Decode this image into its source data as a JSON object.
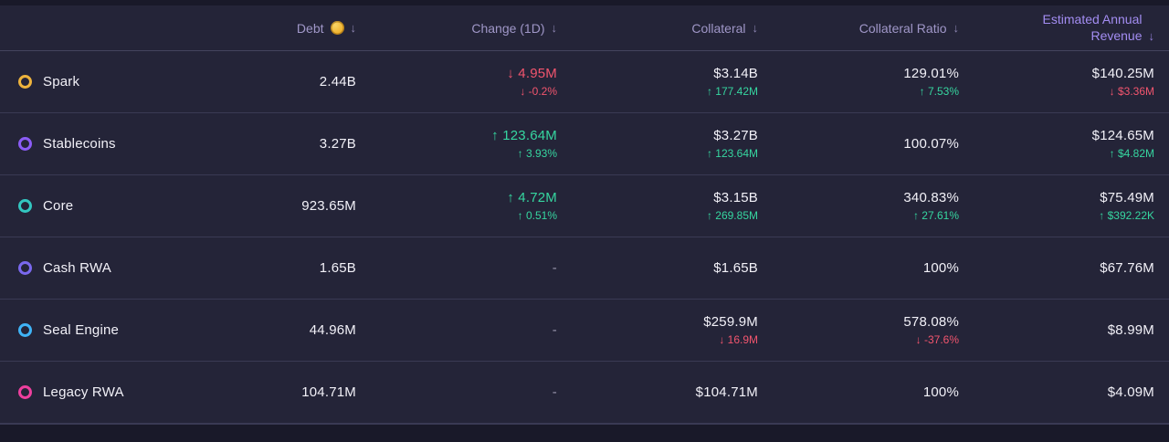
{
  "theme": {
    "bg": "#242438",
    "edge": "#191929",
    "divider": "#3a3a54",
    "header_divider": "#44445e",
    "text_primary": "#f2f1f8",
    "text_header": "#a097c8",
    "accent_header": "#a38df2",
    "positive": "#36d6a0",
    "negative": "#f2556e",
    "muted": "#9896ab",
    "coin": "#f0b431"
  },
  "table": {
    "headers": {
      "name": {
        "label": ""
      },
      "debt": {
        "label": "Debt",
        "icon": "coin-icon",
        "sort": "↓"
      },
      "change": {
        "label": "Change (1D)",
        "sort": "↓"
      },
      "collateral": {
        "label": "Collateral",
        "sort": "↓"
      },
      "ratio": {
        "label": "Collateral Ratio",
        "sort": "↓"
      },
      "revenue": {
        "label": "Estimated Annual Revenue",
        "sort": "↓"
      }
    },
    "rows": [
      {
        "name": "Spark",
        "color": "#eeb33d",
        "debt": {
          "value": "2.44B"
        },
        "change": {
          "value": "4.95M",
          "dir": "down",
          "sub": "-0.2%",
          "sub_dir": "down"
        },
        "collateral": {
          "value": "$3.14B",
          "sub": "177.42M",
          "sub_dir": "up"
        },
        "ratio": {
          "value": "129.01%",
          "sub": "7.53%",
          "sub_dir": "up"
        },
        "revenue": {
          "value": "$140.25M",
          "sub": "$3.36M",
          "sub_dir": "down"
        }
      },
      {
        "name": "Stablecoins",
        "color": "#8b5cf6",
        "debt": {
          "value": "3.27B"
        },
        "change": {
          "value": "123.64M",
          "dir": "up",
          "sub": "3.93%",
          "sub_dir": "up"
        },
        "collateral": {
          "value": "$3.27B",
          "sub": "123.64M",
          "sub_dir": "up"
        },
        "ratio": {
          "value": "100.07%"
        },
        "revenue": {
          "value": "$124.65M",
          "sub": "$4.82M",
          "sub_dir": "up"
        }
      },
      {
        "name": "Core",
        "color": "#33c6c0",
        "debt": {
          "value": "923.65M"
        },
        "change": {
          "value": "4.72M",
          "dir": "up",
          "sub": "0.51%",
          "sub_dir": "up"
        },
        "collateral": {
          "value": "$3.15B",
          "sub": "269.85M",
          "sub_dir": "up"
        },
        "ratio": {
          "value": "340.83%",
          "sub": "27.61%",
          "sub_dir": "up"
        },
        "revenue": {
          "value": "$75.49M",
          "sub": "$392.22K",
          "sub_dir": "up"
        }
      },
      {
        "name": "Cash RWA",
        "color": "#7a68ee",
        "debt": {
          "value": "1.65B"
        },
        "change": {
          "value": "-"
        },
        "collateral": {
          "value": "$1.65B"
        },
        "ratio": {
          "value": "100%"
        },
        "revenue": {
          "value": "$67.76M"
        }
      },
      {
        "name": "Seal Engine",
        "color": "#3fb3f6",
        "debt": {
          "value": "44.96M"
        },
        "change": {
          "value": "-"
        },
        "collateral": {
          "value": "$259.9M",
          "sub": "16.9M",
          "sub_dir": "down"
        },
        "ratio": {
          "value": "578.08%",
          "sub": "-37.6%",
          "sub_dir": "down"
        },
        "revenue": {
          "value": "$8.99M"
        }
      },
      {
        "name": "Legacy RWA",
        "color": "#ee3f9e",
        "debt": {
          "value": "104.71M"
        },
        "change": {
          "value": "-"
        },
        "collateral": {
          "value": "$104.71M"
        },
        "ratio": {
          "value": "100%"
        },
        "revenue": {
          "value": "$4.09M"
        }
      }
    ]
  }
}
